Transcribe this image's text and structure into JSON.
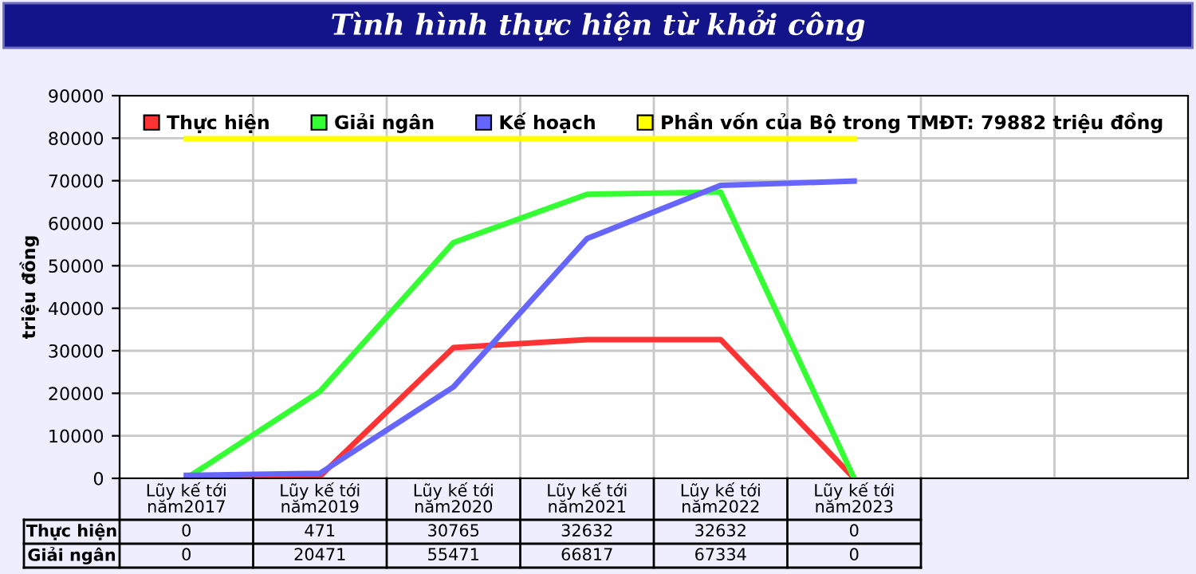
{
  "chart_data": {
    "type": "line",
    "title": "Tình hình thực hiện từ khởi công",
    "ylabel": "triệu đồng",
    "categories": [
      "Lũy kế tới\nnăm2017",
      "Lũy kế tới\nnăm2019",
      "Lũy kế tới\nnăm2020",
      "Lũy kế tới\nnăm2021",
      "Lũy kế tới\nnăm2022",
      "Lũy kế tới\nnăm2023"
    ],
    "series": [
      {
        "name": "Thực hiện",
        "color": "#ff3333",
        "values": [
          0,
          471,
          30765,
          32632,
          32632,
          0
        ],
        "value_labels": [
          "0",
          "471",
          "30765",
          "32632",
          "32632",
          "0"
        ]
      },
      {
        "name": "Giải ngân",
        "color": "#33ff33",
        "values": [
          0,
          20471,
          55471,
          66817,
          67334,
          0
        ],
        "value_labels": [
          "0",
          "20471",
          "55471",
          "66817",
          "67334",
          "0"
        ]
      },
      {
        "name": "Kế hoạch",
        "color": "#6666ff",
        "values": [
          700,
          1200,
          21500,
          56400,
          68900,
          69900
        ]
      },
      {
        "name": "Phần vốn của Bộ trong TMĐT: 79882 triệu đồng",
        "color": "#ffff00",
        "values": [
          79882,
          79882,
          79882,
          79882,
          79882,
          79882
        ]
      }
    ],
    "ylim": [
      0,
      90000
    ],
    "yticks": [
      0,
      10000,
      20000,
      30000,
      40000,
      50000,
      60000,
      70000,
      80000,
      90000
    ],
    "grid": true,
    "legend": "top",
    "marker": "none",
    "line_style": "solid"
  }
}
